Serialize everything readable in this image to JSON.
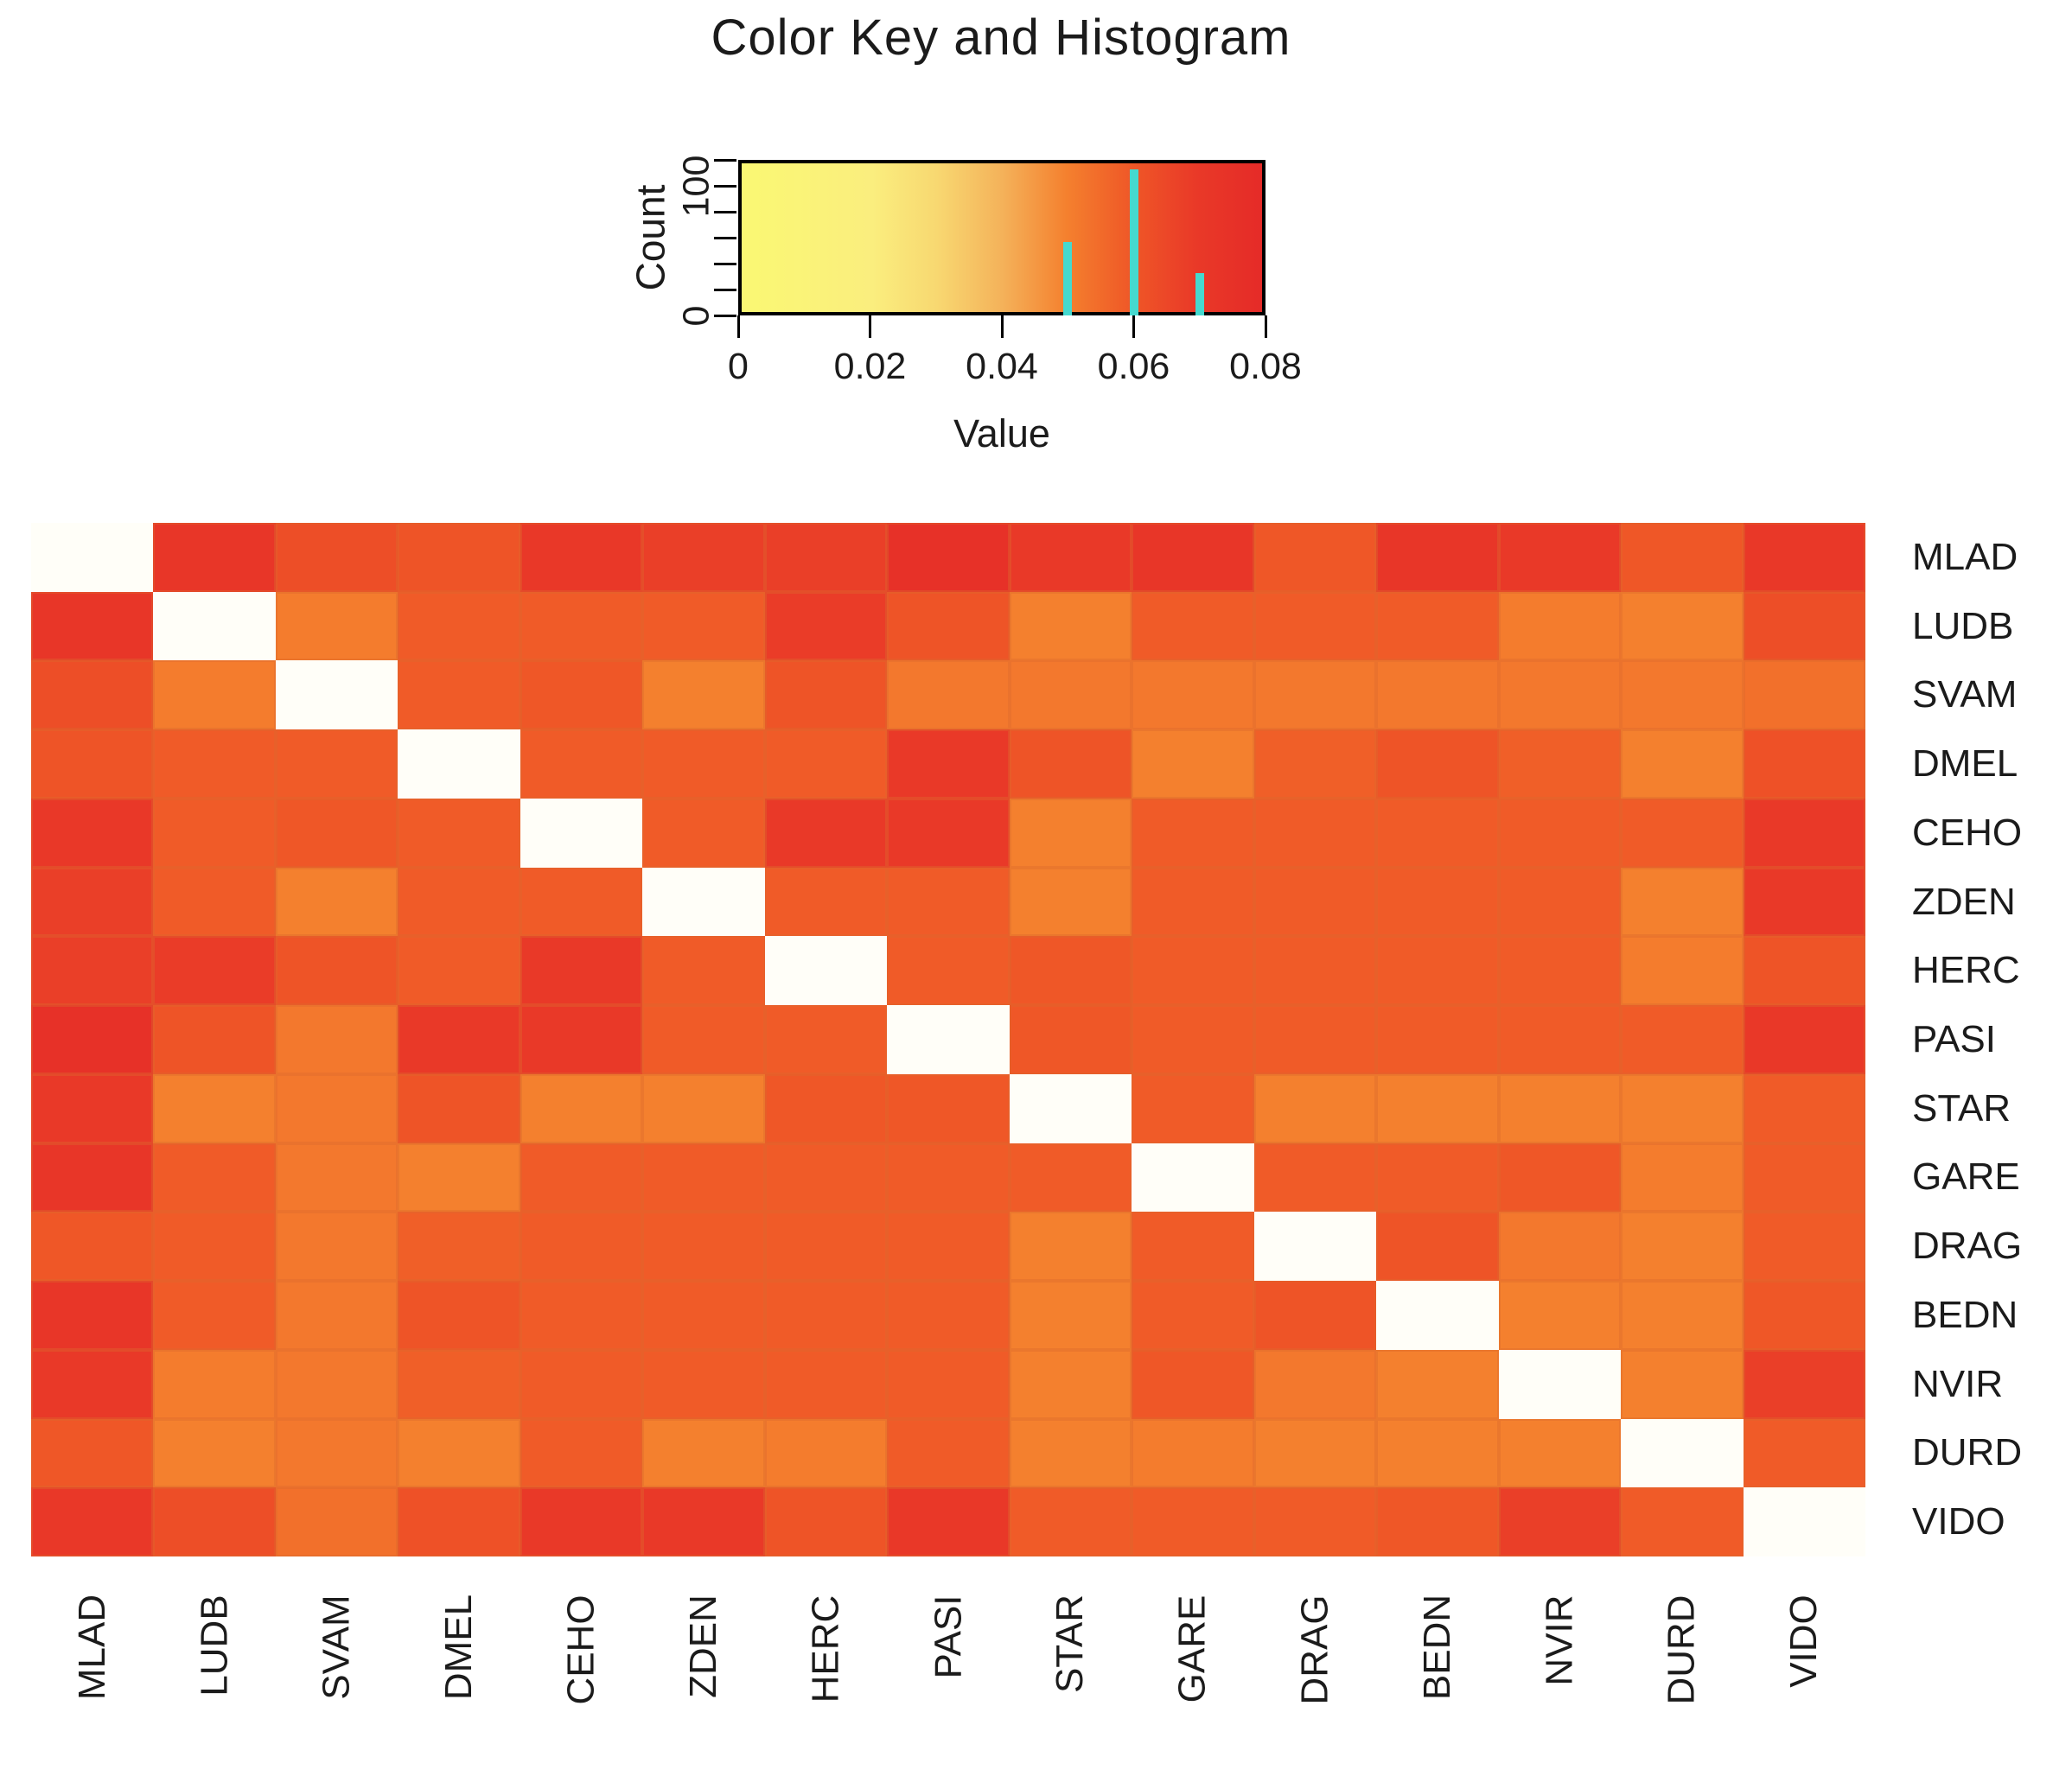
{
  "title": "Color Key and Histogram",
  "color_key": {
    "xlabel": "Value",
    "ylabel": "Count",
    "value_min": 0,
    "value_max": 0.08,
    "x_ticks": [
      {
        "value": 0,
        "label": "0"
      },
      {
        "value": 0.02,
        "label": "0.02"
      },
      {
        "value": 0.04,
        "label": "0.04"
      },
      {
        "value": 0.06,
        "label": "0.06"
      },
      {
        "value": 0.08,
        "label": "0.08"
      }
    ],
    "count_axis": {
      "min": 0,
      "max": 120,
      "tick_step": 20,
      "labeled_ticks": [
        {
          "value": 0,
          "label": "0"
        },
        {
          "value": 100,
          "label": "100"
        }
      ]
    },
    "histogram": {
      "bar_color": "#45D9CF",
      "bars": [
        {
          "value": 0.05,
          "count": 57
        },
        {
          "value": 0.06,
          "count": 113
        },
        {
          "value": 0.07,
          "count": 33
        }
      ]
    }
  },
  "chart_data": {
    "type": "heatmap",
    "title": "Color Key and Histogram",
    "legend_position": "top",
    "grid": "off",
    "value_range": [
      0,
      0.08
    ],
    "na_color": "#FFFEF8",
    "gradient_stops": [
      {
        "v": 0.0,
        "color": "#FAF873"
      },
      {
        "v": 0.02,
        "color": "#FAEE7E"
      },
      {
        "v": 0.03,
        "color": "#F8D871"
      },
      {
        "v": 0.04,
        "color": "#F4B25A"
      },
      {
        "v": 0.05,
        "color": "#F4802E"
      },
      {
        "v": 0.06,
        "color": "#EF5727"
      },
      {
        "v": 0.07,
        "color": "#E93928"
      },
      {
        "v": 0.08,
        "color": "#E52B28"
      }
    ],
    "labels": [
      "MLAD",
      "LUDB",
      "SVAM",
      "DMEL",
      "CEHO",
      "ZDEN",
      "HERC",
      "PASI",
      "STAR",
      "GARE",
      "DRAG",
      "BEDN",
      "NVIR",
      "DURD",
      "VIDO"
    ],
    "matrix": [
      [
        null,
        0.072,
        0.063,
        0.061,
        0.071,
        0.068,
        0.068,
        0.076,
        0.07,
        0.072,
        0.06,
        0.072,
        0.07,
        0.06,
        0.071
      ],
      [
        0.072,
        null,
        0.051,
        0.059,
        0.059,
        0.059,
        0.069,
        0.061,
        0.05,
        0.059,
        0.059,
        0.059,
        0.051,
        0.05,
        0.063
      ],
      [
        0.063,
        0.051,
        null,
        0.059,
        0.06,
        0.05,
        0.061,
        0.052,
        0.052,
        0.052,
        0.052,
        0.052,
        0.052,
        0.052,
        0.054
      ],
      [
        0.061,
        0.059,
        0.059,
        null,
        0.059,
        0.059,
        0.059,
        0.07,
        0.061,
        0.05,
        0.058,
        0.061,
        0.058,
        0.05,
        0.062
      ],
      [
        0.071,
        0.059,
        0.06,
        0.059,
        null,
        0.059,
        0.07,
        0.07,
        0.05,
        0.059,
        0.059,
        0.059,
        0.059,
        0.059,
        0.07
      ],
      [
        0.068,
        0.059,
        0.05,
        0.059,
        0.059,
        null,
        0.059,
        0.059,
        0.05,
        0.059,
        0.059,
        0.059,
        0.059,
        0.05,
        0.07
      ],
      [
        0.068,
        0.069,
        0.061,
        0.059,
        0.07,
        0.059,
        null,
        0.059,
        0.06,
        0.059,
        0.059,
        0.059,
        0.059,
        0.051,
        0.061
      ],
      [
        0.076,
        0.061,
        0.052,
        0.07,
        0.07,
        0.059,
        0.059,
        null,
        0.06,
        0.059,
        0.059,
        0.059,
        0.059,
        0.059,
        0.071
      ],
      [
        0.07,
        0.05,
        0.052,
        0.061,
        0.05,
        0.05,
        0.06,
        0.06,
        null,
        0.059,
        0.05,
        0.05,
        0.05,
        0.05,
        0.059
      ],
      [
        0.072,
        0.059,
        0.052,
        0.05,
        0.059,
        0.059,
        0.059,
        0.059,
        0.059,
        null,
        0.059,
        0.059,
        0.06,
        0.051,
        0.059
      ],
      [
        0.06,
        0.059,
        0.052,
        0.058,
        0.059,
        0.059,
        0.059,
        0.059,
        0.05,
        0.059,
        null,
        0.061,
        0.052,
        0.05,
        0.059
      ],
      [
        0.072,
        0.059,
        0.052,
        0.061,
        0.059,
        0.059,
        0.059,
        0.059,
        0.05,
        0.059,
        0.061,
        null,
        0.05,
        0.05,
        0.06
      ],
      [
        0.07,
        0.051,
        0.052,
        0.058,
        0.059,
        0.059,
        0.059,
        0.059,
        0.05,
        0.06,
        0.052,
        0.05,
        null,
        0.05,
        0.068
      ],
      [
        0.06,
        0.05,
        0.052,
        0.05,
        0.059,
        0.05,
        0.051,
        0.059,
        0.05,
        0.051,
        0.05,
        0.05,
        0.05,
        null,
        0.059
      ],
      [
        0.071,
        0.063,
        0.054,
        0.062,
        0.07,
        0.07,
        0.061,
        0.071,
        0.059,
        0.059,
        0.059,
        0.06,
        0.068,
        0.059,
        null
      ]
    ]
  }
}
